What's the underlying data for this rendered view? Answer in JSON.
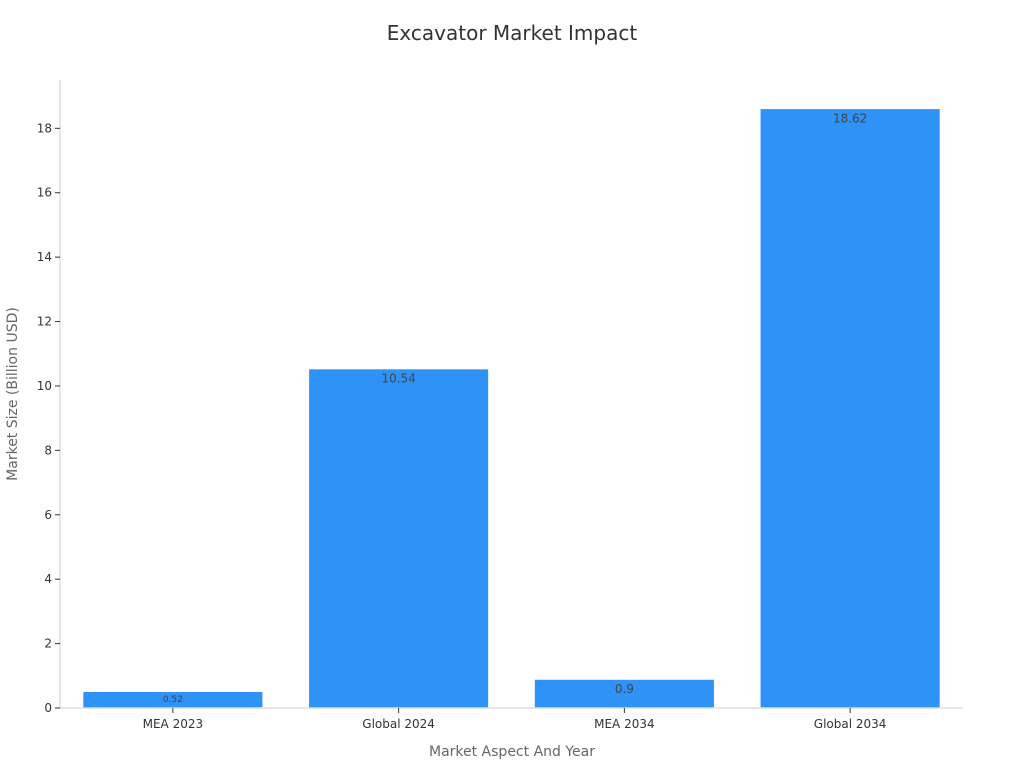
{
  "chart_data": {
    "type": "bar",
    "title": "Excavator Market Impact",
    "xlabel": "Market Aspect And Year",
    "ylabel": "Market Size (Billion USD)",
    "categories": [
      "MEA 2023",
      "Global 2024",
      "MEA 2034",
      "Global 2034"
    ],
    "values": [
      0.52,
      10.54,
      0.9,
      18.62
    ],
    "value_labels": [
      "0.52",
      "10.54",
      "0.9",
      "18.62"
    ],
    "ylim": [
      0,
      19.5
    ],
    "yticks": [
      0,
      2,
      4,
      6,
      8,
      10,
      12,
      14,
      16,
      18
    ],
    "grid": false,
    "legend": "none",
    "bar_color": "#2f92f7"
  }
}
